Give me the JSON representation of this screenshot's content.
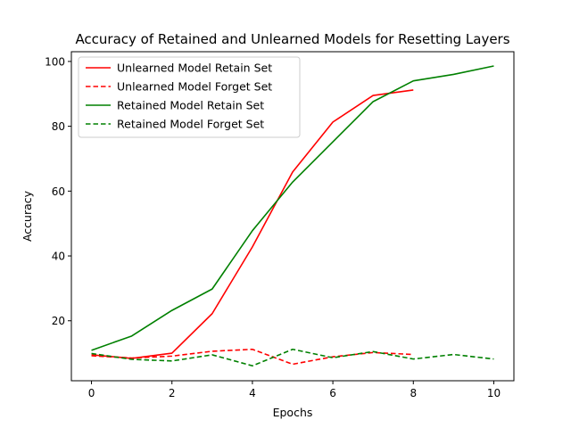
{
  "chart_data": {
    "type": "line",
    "title": "Accuracy of Retained and Unlearned Models for Resetting Layers",
    "xlabel": "Epochs",
    "ylabel": "Accuracy",
    "xlim": [
      -0.5,
      10.5
    ],
    "ylim": [
      1.5,
      103
    ],
    "xticks": [
      0,
      2,
      4,
      6,
      8,
      10
    ],
    "yticks": [
      20,
      40,
      60,
      80,
      100
    ],
    "grid": false,
    "legend_position": "top-left",
    "series": [
      {
        "name": "Unlearned Model Retain Set",
        "color": "#ff0000",
        "dash": "solid",
        "x": [
          0,
          1,
          2,
          3,
          4,
          5,
          6,
          7,
          8
        ],
        "values": [
          9.5,
          8.4,
          10.0,
          22.2,
          42.8,
          65.9,
          81.3,
          89.5,
          91.2
        ]
      },
      {
        "name": "Unlearned Model Forget Set",
        "color": "#ff0000",
        "dash": "dashed",
        "x": [
          0,
          1,
          2,
          3,
          4,
          5,
          6,
          7,
          8
        ],
        "values": [
          9.2,
          8.5,
          9.1,
          10.6,
          11.2,
          6.6,
          8.9,
          10.2,
          9.6
        ]
      },
      {
        "name": "Retained Model Retain Set",
        "color": "#008000",
        "dash": "solid",
        "x": [
          0,
          1,
          2,
          3,
          4,
          5,
          6,
          7,
          8,
          9,
          10
        ],
        "values": [
          10.9,
          15.3,
          23.2,
          29.8,
          47.8,
          62.8,
          75.2,
          87.6,
          94.0,
          96.0,
          98.6
        ]
      },
      {
        "name": "Retained Model Forget Set",
        "color": "#008000",
        "dash": "dashed",
        "x": [
          0,
          1,
          2,
          3,
          4,
          5,
          6,
          7,
          8,
          9,
          10
        ],
        "values": [
          9.9,
          8.1,
          7.6,
          9.5,
          6.1,
          11.2,
          8.6,
          10.5,
          8.2,
          9.6,
          8.2
        ]
      }
    ]
  }
}
